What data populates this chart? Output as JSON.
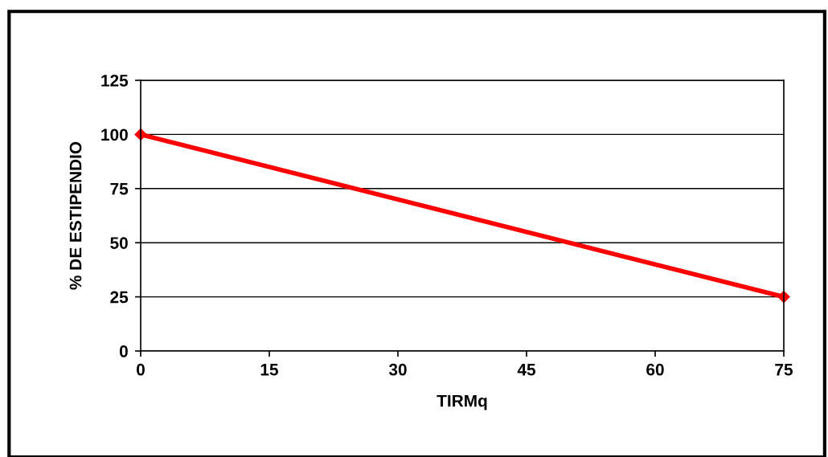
{
  "chart_data": {
    "type": "line",
    "xlabel": "TIRMq",
    "ylabel": "% DE ESTIPENDIO",
    "x": [
      0,
      75
    ],
    "series": [
      {
        "color": "#ff0000",
        "values": [
          100,
          25
        ]
      }
    ],
    "xlim": [
      0,
      75
    ],
    "xticks": [
      0,
      15,
      30,
      45,
      60,
      75
    ],
    "ylim": [
      0,
      125
    ],
    "yticks": [
      0,
      25,
      50,
      75,
      100,
      125
    ],
    "grid": "y",
    "marker": "diamond",
    "line_style": "solid"
  }
}
